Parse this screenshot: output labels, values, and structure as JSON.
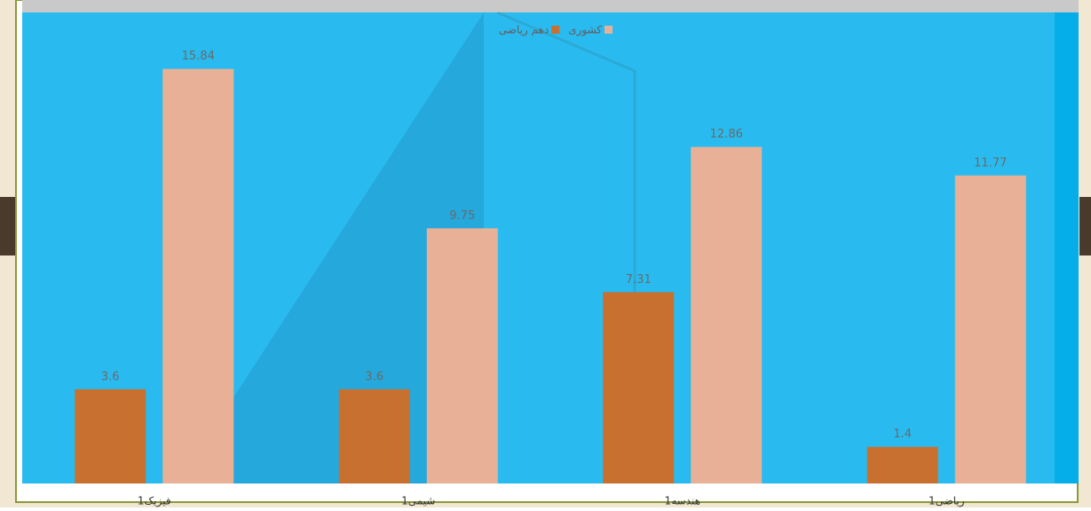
{
  "chart_data": {
    "type": "bar",
    "categories": [
      "فیزیک1",
      "شیمی1",
      "هندسه1",
      "ریاضی1"
    ],
    "series": [
      {
        "name": "دهم ریاضی",
        "color": "#c8702f",
        "values": [
          3.6,
          3.6,
          7.31,
          1.4
        ]
      },
      {
        "name": "کشوری",
        "color": "#e8b197",
        "values": [
          15.84,
          9.75,
          12.86,
          11.77
        ]
      }
    ],
    "ylim": [
      0,
      18
    ],
    "legend": "top"
  }
}
